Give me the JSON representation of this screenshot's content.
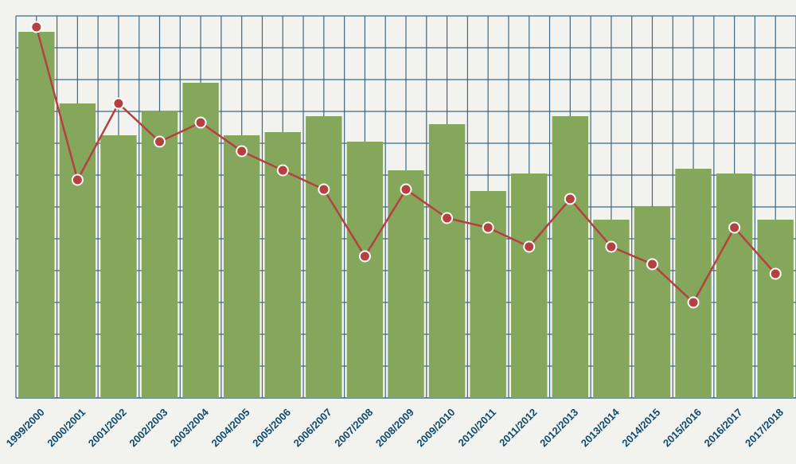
{
  "chart_data": {
    "type": "bar",
    "categories": [
      "1999/2000",
      "2000/2001",
      "2001/2002",
      "2002/2003",
      "2003/2004",
      "2004/2005",
      "2005/2006",
      "2006/2007",
      "2007/2008",
      "2008/2009",
      "2009/2010",
      "2010/2011",
      "2011/2012",
      "2012/2013",
      "2013/2014",
      "2014/2015",
      "2015/2016",
      "2016/2017",
      "2017/2018"
    ],
    "series": [
      {
        "type": "bar",
        "values": [
          23.0,
          18.5,
          16.5,
          18.0,
          19.8,
          16.5,
          16.7,
          17.7,
          16.1,
          14.3,
          17.2,
          13.0,
          14.1,
          17.7,
          11.2,
          12.0,
          14.4,
          14.1,
          11.2
        ]
      },
      {
        "type": "line",
        "values": [
          23.3,
          13.7,
          18.5,
          16.1,
          17.3,
          15.5,
          14.3,
          13.1,
          8.9,
          13.1,
          11.3,
          10.7,
          9.5,
          12.5,
          9.5,
          8.4,
          6.0,
          10.7,
          7.8
        ]
      }
    ],
    "ylim": [
      0,
      24
    ],
    "grid": true,
    "colors": {
      "bar": "#85a75c",
      "line": "#b5413f",
      "grid": "#3f6884",
      "label": "#0f4a6e",
      "marker_edge": "#ffffff"
    }
  }
}
